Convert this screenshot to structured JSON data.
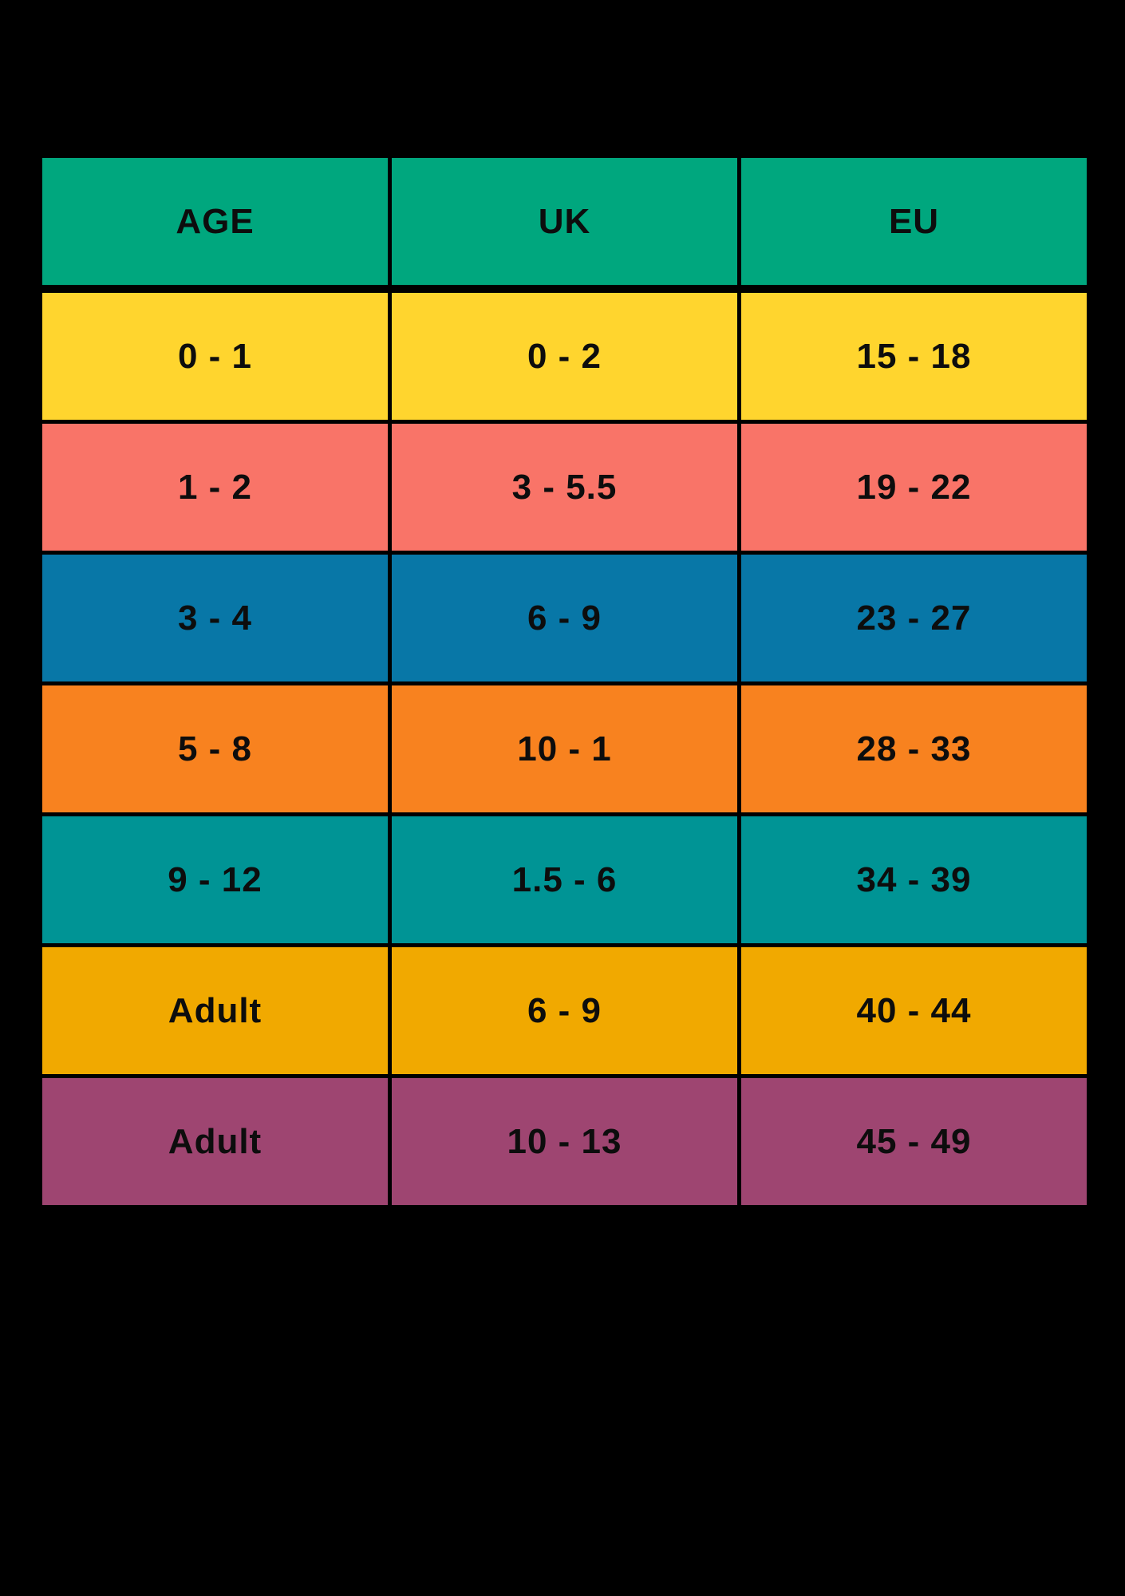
{
  "background_color": "#000000",
  "text_color": "#0d0d0d",
  "table": {
    "header": {
      "bg": "#00A77E",
      "labels": [
        "AGE",
        "UK",
        "EU"
      ]
    },
    "rows": [
      {
        "bg": "#FFD52E",
        "values": [
          "0 - 1",
          "0 - 2",
          "15 - 18"
        ]
      },
      {
        "bg": "#F97468",
        "values": [
          "1 - 2",
          "3 - 5.5",
          "19 - 22"
        ]
      },
      {
        "bg": "#0877A7",
        "values": [
          "3 - 4",
          "6 - 9",
          "23 - 27"
        ]
      },
      {
        "bg": "#F8821F",
        "values": [
          "5 - 8",
          "10 - 1",
          "28 - 33"
        ]
      },
      {
        "bg": "#009495",
        "values": [
          "9 - 12",
          "1.5 - 6",
          "34 - 39"
        ]
      },
      {
        "bg": "#F1A900",
        "values": [
          "Adult",
          "6 - 9",
          "40 - 44"
        ]
      },
      {
        "bg": "#9E4571",
        "values": [
          "Adult",
          "10 - 13",
          "45 - 49"
        ]
      }
    ]
  },
  "chart_data": {
    "type": "table",
    "title": "",
    "columns": [
      "AGE",
      "UK",
      "EU"
    ],
    "rows": [
      [
        "0 - 1",
        "0 - 2",
        "15 - 18"
      ],
      [
        "1 - 2",
        "3 - 5.5",
        "19 - 22"
      ],
      [
        "3 - 4",
        "6 - 9",
        "23 - 27"
      ],
      [
        "5 - 8",
        "10 - 1",
        "28 - 33"
      ],
      [
        "9 - 12",
        "1.5 - 6",
        "34 - 39"
      ],
      [
        "Adult",
        "6 - 9",
        "40 - 44"
      ],
      [
        "Adult",
        "10 - 13",
        "45 - 49"
      ]
    ],
    "header_color": "#00A77E",
    "row_colors": [
      "#FFD52E",
      "#F97468",
      "#0877A7",
      "#F8821F",
      "#009495",
      "#F1A900",
      "#9E4571"
    ],
    "background": "#000000",
    "layout": "3 equal columns, header row + 7 data rows, black grid lines"
  }
}
